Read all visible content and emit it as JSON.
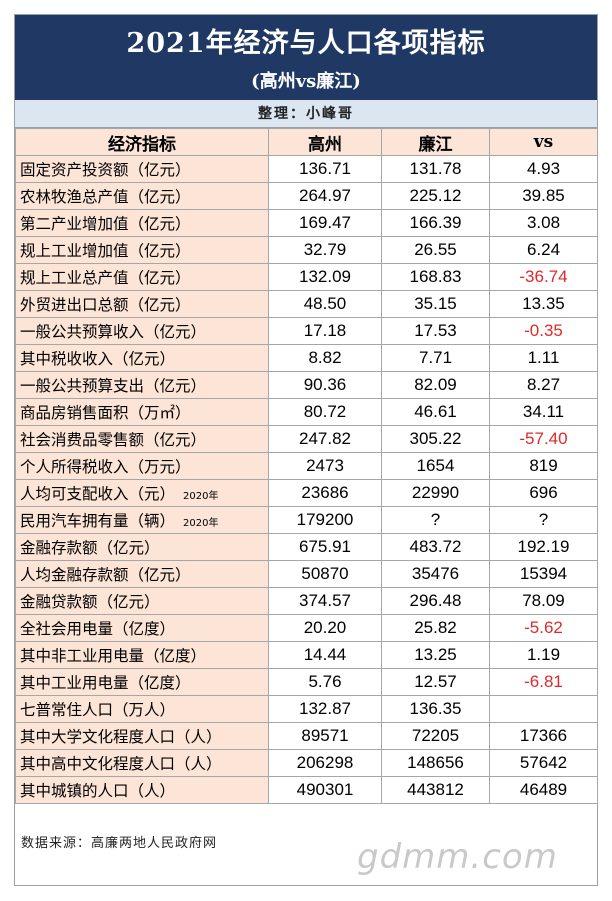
{
  "header": {
    "title": "2021年经济与人口各项指标",
    "subtitle": "(高州vs廉江)"
  },
  "author": "整理：小峰哥",
  "table": {
    "columns": [
      "经济指标",
      "高州",
      "廉江",
      "vs"
    ],
    "rows": [
      {
        "label": "固定资产投资额（亿元）",
        "note": "",
        "gaozhou": "136.71",
        "lianjiang": "131.78",
        "vs": "4.93",
        "negative": false
      },
      {
        "label": "农林牧渔总产值（亿元）",
        "note": "",
        "gaozhou": "264.97",
        "lianjiang": "225.12",
        "vs": "39.85",
        "negative": false
      },
      {
        "label": "第二产业增加值（亿元）",
        "note": "",
        "gaozhou": "169.47",
        "lianjiang": "166.39",
        "vs": "3.08",
        "negative": false
      },
      {
        "label": "规上工业增加值（亿元）",
        "note": "",
        "gaozhou": "32.79",
        "lianjiang": "26.55",
        "vs": "6.24",
        "negative": false
      },
      {
        "label": "规上工业总产值（亿元）",
        "note": "",
        "gaozhou": "132.09",
        "lianjiang": "168.83",
        "vs": "-36.74",
        "negative": true
      },
      {
        "label": "外贸进出口总额（亿元）",
        "note": "",
        "gaozhou": "48.50",
        "lianjiang": "35.15",
        "vs": "13.35",
        "negative": false
      },
      {
        "label": "一般公共预算收入（亿元）",
        "note": "",
        "gaozhou": "17.18",
        "lianjiang": "17.53",
        "vs": "-0.35",
        "negative": true
      },
      {
        "label": "其中税收收入（亿元）",
        "note": "",
        "gaozhou": "8.82",
        "lianjiang": "7.71",
        "vs": "1.11",
        "negative": false
      },
      {
        "label": "一般公共预算支出（亿元）",
        "note": "",
        "gaozhou": "90.36",
        "lianjiang": "82.09",
        "vs": "8.27",
        "negative": false
      },
      {
        "label": "商品房销售面积（万㎡）",
        "note": "",
        "gaozhou": "80.72",
        "lianjiang": "46.61",
        "vs": "34.11",
        "negative": false
      },
      {
        "label": "社会消费品零售额（亿元）",
        "note": "",
        "gaozhou": "247.82",
        "lianjiang": "305.22",
        "vs": "-57.40",
        "negative": true
      },
      {
        "label": "个人所得税收入（万元）",
        "note": "",
        "gaozhou": "2473",
        "lianjiang": "1654",
        "vs": "819",
        "negative": false
      },
      {
        "label": "人均可支配收入（元）",
        "note": "2020年",
        "gaozhou": "23686",
        "lianjiang": "22990",
        "vs": "696",
        "negative": false
      },
      {
        "label": "民用汽车拥有量（辆）",
        "note": "2020年",
        "gaozhou": "179200",
        "lianjiang": "?",
        "vs": "?",
        "negative": false
      },
      {
        "label": "金融存款额（亿元）",
        "note": "",
        "gaozhou": "675.91",
        "lianjiang": "483.72",
        "vs": "192.19",
        "negative": false
      },
      {
        "label": "人均金融存款额（亿元）",
        "note": "",
        "gaozhou": "50870",
        "lianjiang": "35476",
        "vs": "15394",
        "negative": false
      },
      {
        "label": "金融贷款额（亿元）",
        "note": "",
        "gaozhou": "374.57",
        "lianjiang": "296.48",
        "vs": "78.09",
        "negative": false
      },
      {
        "label": "全社会用电量（亿度）",
        "note": "",
        "gaozhou": "20.20",
        "lianjiang": "25.82",
        "vs": "-5.62",
        "negative": true
      },
      {
        "label": "其中非工业用电量（亿度）",
        "note": "",
        "gaozhou": "14.44",
        "lianjiang": "13.25",
        "vs": "1.19",
        "negative": false
      },
      {
        "label": "其中工业用电量（亿度）",
        "note": "",
        "gaozhou": "5.76",
        "lianjiang": "12.57",
        "vs": "-6.81",
        "negative": true
      },
      {
        "label": "七普常住人口（万人）",
        "note": "",
        "gaozhou": "132.87",
        "lianjiang": "136.35",
        "vs": "",
        "negative": false
      },
      {
        "label": "其中大学文化程度人口（人）",
        "note": "",
        "gaozhou": "89571",
        "lianjiang": "72205",
        "vs": "17366",
        "negative": false
      },
      {
        "label": "其中高中文化程度人口（人）",
        "note": "",
        "gaozhou": "206298",
        "lianjiang": "148656",
        "vs": "57642",
        "negative": false
      },
      {
        "label": "其中城镇的人口（人）",
        "note": "",
        "gaozhou": "490301",
        "lianjiang": "443812",
        "vs": "46489",
        "negative": false
      }
    ]
  },
  "footer": {
    "source": "数据来源：高廉两地人民政府网",
    "watermark": "gdmm.com"
  },
  "colors": {
    "header_bg": "#1f3864",
    "author_bg": "#dce6f1",
    "label_bg": "#fce4d6",
    "negative": "#e0292a"
  }
}
